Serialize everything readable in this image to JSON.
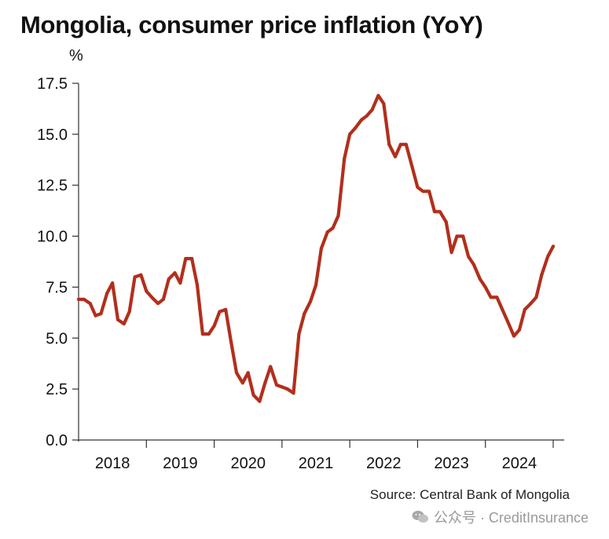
{
  "title": "Mongolia, consumer price inflation (YoY)",
  "unit_label": "%",
  "source": "Source: Central Bank of Mongolia",
  "watermark": "公众号 · CreditInsurance",
  "colors": {
    "line": "#b22f1c",
    "axis": "#333333",
    "text": "#111111"
  },
  "chart_data": {
    "type": "line",
    "title": "Mongolia, consumer price inflation (YoY)",
    "xlabel": "",
    "ylabel": "%",
    "ylim": [
      0,
      17.5
    ],
    "xlim": [
      2018.0,
      2025.0
    ],
    "yticks": [
      0.0,
      2.5,
      5.0,
      7.5,
      10.0,
      12.5,
      15.0,
      17.5
    ],
    "ytick_labels": [
      "0.0",
      "2.5",
      "5.0",
      "7.5",
      "10.0",
      "12.5",
      "15.0",
      "17.5"
    ],
    "xtick_labels": [
      "2018",
      "2019",
      "2020",
      "2021",
      "2022",
      "2023",
      "2024"
    ],
    "grid": false,
    "legend": "none",
    "series": [
      {
        "points": [
          [
            2018.0,
            6.9
          ],
          [
            2018.08,
            6.9
          ],
          [
            2018.17,
            6.7
          ],
          [
            2018.25,
            6.1
          ],
          [
            2018.33,
            6.2
          ],
          [
            2018.42,
            7.2
          ],
          [
            2018.5,
            7.7
          ],
          [
            2018.58,
            5.9
          ],
          [
            2018.67,
            5.7
          ],
          [
            2018.75,
            6.3
          ],
          [
            2018.83,
            8.0
          ],
          [
            2018.92,
            8.1
          ],
          [
            2019.0,
            7.3
          ],
          [
            2019.08,
            7.0
          ],
          [
            2019.17,
            6.7
          ],
          [
            2019.25,
            6.9
          ],
          [
            2019.33,
            7.9
          ],
          [
            2019.42,
            8.2
          ],
          [
            2019.5,
            7.7
          ],
          [
            2019.58,
            8.9
          ],
          [
            2019.67,
            8.9
          ],
          [
            2019.75,
            7.6
          ],
          [
            2019.83,
            5.2
          ],
          [
            2019.92,
            5.2
          ],
          [
            2020.0,
            5.6
          ],
          [
            2020.08,
            6.3
          ],
          [
            2020.17,
            6.4
          ],
          [
            2020.25,
            4.8
          ],
          [
            2020.33,
            3.3
          ],
          [
            2020.42,
            2.8
          ],
          [
            2020.5,
            3.3
          ],
          [
            2020.58,
            2.2
          ],
          [
            2020.67,
            1.9
          ],
          [
            2020.75,
            2.8
          ],
          [
            2020.83,
            3.6
          ],
          [
            2020.92,
            2.7
          ],
          [
            2021.0,
            2.6
          ],
          [
            2021.08,
            2.5
          ],
          [
            2021.17,
            2.3
          ],
          [
            2021.25,
            5.2
          ],
          [
            2021.33,
            6.2
          ],
          [
            2021.42,
            6.8
          ],
          [
            2021.5,
            7.6
          ],
          [
            2021.58,
            9.4
          ],
          [
            2021.67,
            10.2
          ],
          [
            2021.75,
            10.4
          ],
          [
            2021.83,
            11.0
          ],
          [
            2021.92,
            13.8
          ],
          [
            2022.0,
            15.0
          ],
          [
            2022.08,
            15.3
          ],
          [
            2022.17,
            15.7
          ],
          [
            2022.25,
            15.9
          ],
          [
            2022.33,
            16.2
          ],
          [
            2022.42,
            16.9
          ],
          [
            2022.5,
            16.5
          ],
          [
            2022.58,
            14.5
          ],
          [
            2022.67,
            13.9
          ],
          [
            2022.75,
            14.5
          ],
          [
            2022.83,
            14.5
          ],
          [
            2022.92,
            13.4
          ],
          [
            2023.0,
            12.4
          ],
          [
            2023.08,
            12.2
          ],
          [
            2023.17,
            12.2
          ],
          [
            2023.25,
            11.2
          ],
          [
            2023.33,
            11.2
          ],
          [
            2023.42,
            10.7
          ],
          [
            2023.5,
            9.2
          ],
          [
            2023.58,
            10.0
          ],
          [
            2023.67,
            10.0
          ],
          [
            2023.75,
            9.0
          ],
          [
            2023.83,
            8.6
          ],
          [
            2023.92,
            7.9
          ],
          [
            2024.0,
            7.5
          ],
          [
            2024.08,
            7.0
          ],
          [
            2024.17,
            7.0
          ],
          [
            2024.25,
            6.4
          ],
          [
            2024.33,
            5.8
          ],
          [
            2024.42,
            5.1
          ],
          [
            2024.5,
            5.4
          ],
          [
            2024.58,
            6.4
          ],
          [
            2024.67,
            6.7
          ],
          [
            2024.75,
            7.0
          ],
          [
            2024.83,
            8.1
          ],
          [
            2024.92,
            9.0
          ],
          [
            2025.0,
            9.5
          ]
        ]
      }
    ]
  }
}
